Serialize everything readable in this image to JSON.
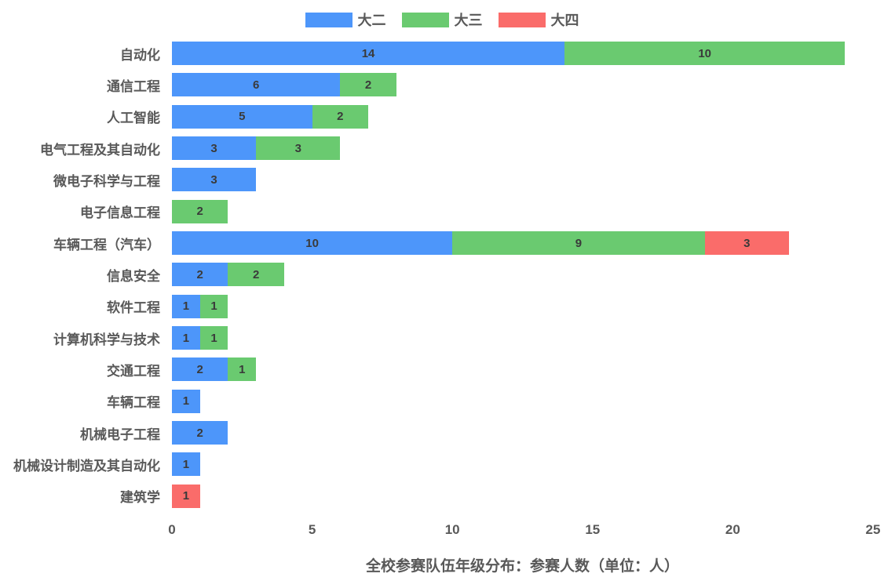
{
  "chart_data": {
    "type": "bar",
    "orientation": "horizontal",
    "stacked": true,
    "title": "全校参赛队伍年级分布：参赛人数（单位：人）",
    "xlabel": "",
    "ylabel": "",
    "xlim": [
      0,
      25
    ],
    "xticks": [
      0,
      5,
      10,
      15,
      20,
      25
    ],
    "grid": false,
    "legend_position": "top-center",
    "value_labels": "inside-center",
    "categories": [
      "自动化",
      "通信工程",
      "人工智能",
      "电气工程及其自动化",
      "微电子科学与工程",
      "电子信息工程",
      "车辆工程（汽车）",
      "信息安全",
      "软件工程",
      "计算机科学与技术",
      "交通工程",
      "车辆工程",
      "机械电子工程",
      "机械设计制造及其自动化",
      "建筑学"
    ],
    "series": [
      {
        "name": "大二",
        "color": "#4d96fa",
        "values": [
          14,
          6,
          5,
          3,
          3,
          0,
          10,
          2,
          1,
          1,
          2,
          1,
          2,
          1,
          0
        ]
      },
      {
        "name": "大三",
        "color": "#6aca70",
        "values": [
          10,
          2,
          2,
          3,
          0,
          2,
          9,
          2,
          1,
          1,
          1,
          0,
          0,
          0,
          0
        ]
      },
      {
        "name": "大四",
        "color": "#fa6c6a",
        "values": [
          0,
          0,
          0,
          0,
          0,
          0,
          3,
          0,
          0,
          0,
          0,
          0,
          0,
          0,
          1
        ]
      }
    ],
    "colors": {
      "category_label": "#595959",
      "value_label": "#3a3a3a",
      "tick_label": "#595959",
      "title": "#595959",
      "background": "#ffffff"
    }
  }
}
